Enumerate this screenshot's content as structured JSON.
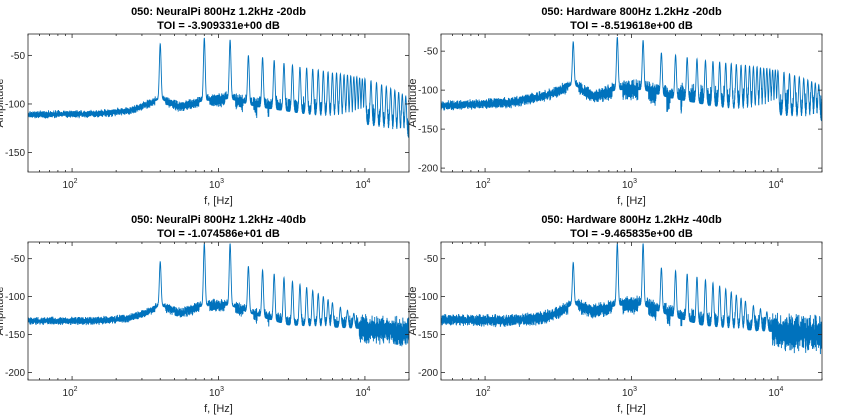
{
  "chart_data": [
    {
      "type": "line",
      "title": "050: NeuralPi 800Hz 1.2kHz -20db",
      "subtitle": "TOI = -3.909331e+00 dB",
      "xlabel": "f, [Hz]",
      "ylabel": "Amplitude",
      "xscale": "log",
      "xlim": [
        50,
        20000
      ],
      "ylim": [
        -170,
        -28
      ],
      "yticks": [
        -50,
        -100,
        -150
      ],
      "xticks": [
        {
          "base": "10",
          "exp": "2",
          "value": 100
        },
        {
          "base": "10",
          "exp": "3",
          "value": 1000
        },
        {
          "base": "10",
          "exp": "4",
          "value": 10000
        }
      ],
      "grid": false,
      "color": "#0072BD",
      "floor": [
        [
          50,
          -111
        ],
        [
          150,
          -110
        ],
        [
          250,
          -107
        ],
        [
          330,
          -100
        ],
        [
          400,
          -95
        ],
        [
          550,
          -103
        ],
        [
          800,
          -97
        ],
        [
          1200,
          -95
        ],
        [
          1800,
          -103
        ],
        [
          3000,
          -108
        ],
        [
          5000,
          -113
        ],
        [
          8000,
          -118
        ],
        [
          13000,
          -125
        ],
        [
          20000,
          -135
        ]
      ],
      "spread": [
        [
          50,
          6
        ],
        [
          300,
          7
        ],
        [
          600,
          9
        ],
        [
          1500,
          15
        ],
        [
          3000,
          25
        ],
        [
          8000,
          35
        ],
        [
          20000,
          40
        ]
      ],
      "peaks": [
        [
          400,
          -38
        ],
        [
          800,
          -32
        ],
        [
          1200,
          -34
        ],
        [
          1600,
          -50
        ],
        [
          2000,
          -52
        ],
        [
          2400,
          -55
        ],
        [
          2800,
          -58
        ],
        [
          3200,
          -60
        ],
        [
          3600,
          -62
        ],
        [
          4000,
          -63
        ],
        [
          4400,
          -64
        ],
        [
          4800,
          -65
        ],
        [
          5200,
          -66
        ],
        [
          5600,
          -67
        ],
        [
          6000,
          -68
        ],
        [
          6400,
          -68
        ],
        [
          6800,
          -69
        ],
        [
          7200,
          -70
        ],
        [
          7600,
          -70
        ],
        [
          8000,
          -71
        ],
        [
          8400,
          -72
        ],
        [
          8800,
          -72
        ],
        [
          9200,
          -73
        ],
        [
          9600,
          -74
        ],
        [
          10000,
          -74
        ],
        [
          11000,
          -76
        ],
        [
          12000,
          -78
        ],
        [
          13000,
          -80
        ],
        [
          14000,
          -82
        ],
        [
          15000,
          -84
        ],
        [
          16000,
          -86
        ],
        [
          17000,
          -88
        ],
        [
          18000,
          -90
        ],
        [
          19000,
          -92
        ]
      ]
    },
    {
      "type": "line",
      "title": "050: Hardware 800Hz 1.2kHz -20db",
      "subtitle": "TOI = -8.519618e+00 dB",
      "xlabel": "f, [Hz]",
      "ylabel": "Amplitude",
      "xscale": "log",
      "xlim": [
        50,
        20000
      ],
      "ylim": [
        -205,
        -28
      ],
      "yticks": [
        -50,
        -100,
        -150,
        -200
      ],
      "xticks": [
        {
          "base": "10",
          "exp": "2",
          "value": 100
        },
        {
          "base": "10",
          "exp": "3",
          "value": 1000
        },
        {
          "base": "10",
          "exp": "4",
          "value": 10000
        }
      ],
      "grid": false,
      "color": "#0072BD",
      "floor": [
        [
          50,
          -120
        ],
        [
          150,
          -116
        ],
        [
          250,
          -108
        ],
        [
          330,
          -100
        ],
        [
          400,
          -93
        ],
        [
          550,
          -108
        ],
        [
          800,
          -100
        ],
        [
          1200,
          -100
        ],
        [
          1800,
          -110
        ],
        [
          3000,
          -118
        ],
        [
          5000,
          -125
        ],
        [
          8000,
          -130
        ],
        [
          13000,
          -135
        ],
        [
          20000,
          -140
        ]
      ],
      "spread": [
        [
          50,
          10
        ],
        [
          300,
          12
        ],
        [
          600,
          15
        ],
        [
          1500,
          25
        ],
        [
          3000,
          40
        ],
        [
          8000,
          55
        ],
        [
          20000,
          60
        ]
      ],
      "peaks": [
        [
          400,
          -38
        ],
        [
          800,
          -32
        ],
        [
          1200,
          -36
        ],
        [
          1600,
          -52
        ],
        [
          2000,
          -55
        ],
        [
          2400,
          -58
        ],
        [
          2800,
          -60
        ],
        [
          3200,
          -62
        ],
        [
          3600,
          -63
        ],
        [
          4000,
          -64
        ],
        [
          4400,
          -65
        ],
        [
          4800,
          -66
        ],
        [
          5200,
          -67
        ],
        [
          5600,
          -68
        ],
        [
          6000,
          -68
        ],
        [
          6400,
          -69
        ],
        [
          6800,
          -70
        ],
        [
          7200,
          -70
        ],
        [
          7600,
          -71
        ],
        [
          8000,
          -72
        ],
        [
          8400,
          -72
        ],
        [
          8800,
          -73
        ],
        [
          9200,
          -74
        ],
        [
          9600,
          -74
        ],
        [
          10000,
          -75
        ],
        [
          11000,
          -77
        ],
        [
          12000,
          -79
        ],
        [
          13000,
          -81
        ],
        [
          14000,
          -83
        ],
        [
          15000,
          -85
        ],
        [
          16000,
          -87
        ],
        [
          17000,
          -89
        ],
        [
          18000,
          -91
        ],
        [
          19000,
          -93
        ]
      ]
    },
    {
      "type": "line",
      "title": "050: NeuralPi 800Hz 1.2kHz -40db",
      "subtitle": "TOI = -1.074586e+01 dB",
      "xlabel": "f, [Hz]",
      "ylabel": "Amplitude",
      "xscale": "log",
      "xlim": [
        50,
        20000
      ],
      "ylim": [
        -210,
        -28
      ],
      "yticks": [
        -50,
        -100,
        -150,
        -200
      ],
      "xticks": [
        {
          "base": "10",
          "exp": "2",
          "value": 100
        },
        {
          "base": "10",
          "exp": "3",
          "value": 1000
        },
        {
          "base": "10",
          "exp": "4",
          "value": 10000
        }
      ],
      "grid": false,
      "color": "#0072BD",
      "floor": [
        [
          50,
          -132
        ],
        [
          150,
          -132
        ],
        [
          250,
          -128
        ],
        [
          330,
          -120
        ],
        [
          400,
          -112
        ],
        [
          550,
          -122
        ],
        [
          800,
          -112
        ],
        [
          1200,
          -112
        ],
        [
          1800,
          -125
        ],
        [
          3000,
          -138
        ],
        [
          5000,
          -140
        ],
        [
          8000,
          -142
        ],
        [
          13000,
          -144
        ],
        [
          20000,
          -148
        ]
      ],
      "spread": [
        [
          50,
          8
        ],
        [
          300,
          9
        ],
        [
          600,
          12
        ],
        [
          1500,
          15
        ],
        [
          3000,
          22
        ],
        [
          8000,
          28
        ],
        [
          20000,
          32
        ]
      ],
      "peaks": [
        [
          400,
          -54
        ],
        [
          800,
          -30
        ],
        [
          1200,
          -30
        ],
        [
          1600,
          -60
        ],
        [
          2000,
          -65
        ],
        [
          2400,
          -70
        ],
        [
          2800,
          -75
        ],
        [
          3200,
          -80
        ],
        [
          3600,
          -84
        ],
        [
          4000,
          -88
        ],
        [
          4400,
          -92
        ],
        [
          4800,
          -96
        ],
        [
          5200,
          -100
        ],
        [
          5600,
          -104
        ],
        [
          6000,
          -108
        ],
        [
          6800,
          -114
        ],
        [
          7600,
          -118
        ],
        [
          8400,
          -122
        ]
      ]
    },
    {
      "type": "line",
      "title": "050: Hardware 800Hz 1.2kHz -40db",
      "subtitle": "TOI = -9.465835e+00 dB",
      "xlabel": "f, [Hz]",
      "ylabel": "Amplitude",
      "xscale": "log",
      "xlim": [
        50,
        20000
      ],
      "ylim": [
        -210,
        -28
      ],
      "yticks": [
        -50,
        -100,
        -150,
        -200
      ],
      "xticks": [
        {
          "base": "10",
          "exp": "2",
          "value": 100
        },
        {
          "base": "10",
          "exp": "3",
          "value": 1000
        },
        {
          "base": "10",
          "exp": "4",
          "value": 10000
        }
      ],
      "grid": false,
      "color": "#0072BD",
      "floor": [
        [
          50,
          -130
        ],
        [
          150,
          -132
        ],
        [
          250,
          -128
        ],
        [
          330,
          -120
        ],
        [
          400,
          -110
        ],
        [
          550,
          -120
        ],
        [
          800,
          -112
        ],
        [
          1200,
          -112
        ],
        [
          1800,
          -125
        ],
        [
          3000,
          -138
        ],
        [
          5000,
          -143
        ],
        [
          8000,
          -146
        ],
        [
          13000,
          -148
        ],
        [
          20000,
          -150
        ]
      ],
      "spread": [
        [
          50,
          12
        ],
        [
          300,
          14
        ],
        [
          600,
          16
        ],
        [
          1500,
          22
        ],
        [
          3000,
          30
        ],
        [
          8000,
          38
        ],
        [
          20000,
          40
        ]
      ],
      "peaks": [
        [
          400,
          -55
        ],
        [
          800,
          -30
        ],
        [
          1200,
          -30
        ],
        [
          1600,
          -62
        ],
        [
          2000,
          -66
        ],
        [
          2400,
          -70
        ],
        [
          2800,
          -74
        ],
        [
          3200,
          -78
        ],
        [
          3600,
          -82
        ],
        [
          4000,
          -86
        ],
        [
          4400,
          -90
        ],
        [
          4800,
          -94
        ],
        [
          5200,
          -98
        ],
        [
          5600,
          -102
        ],
        [
          6000,
          -106
        ],
        [
          6800,
          -112
        ],
        [
          7600,
          -116
        ],
        [
          8400,
          -120
        ]
      ]
    }
  ]
}
